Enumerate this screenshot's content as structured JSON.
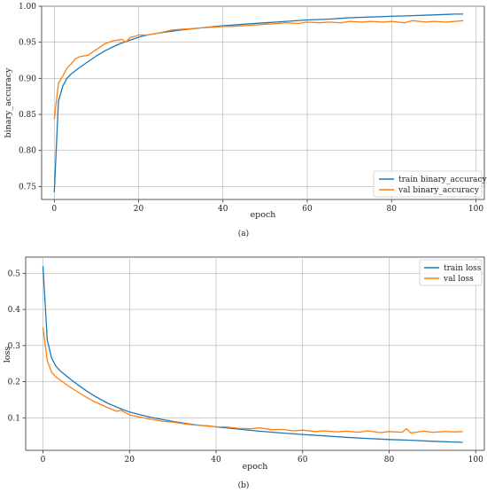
{
  "chart_data": [
    {
      "type": "line",
      "xlabel": "epoch",
      "ylabel": "binary_accuracy",
      "caption": "(a)",
      "xlim": [
        -3,
        102
      ],
      "ylim": [
        0.732,
        1.0
      ],
      "xticks": [
        0,
        20,
        40,
        60,
        80,
        100
      ],
      "yticks": [
        0.75,
        0.8,
        0.85,
        0.9,
        0.95,
        1.0
      ],
      "ytick_labels": [
        "0.75",
        "0.80",
        "0.85",
        "0.90",
        "0.95",
        "1.00"
      ],
      "grid": true,
      "legend_position": "lower-right",
      "series": [
        {
          "name": "train binary_accuracy",
          "color": "#1f77b4",
          "x": [
            0,
            1,
            2,
            3,
            4,
            6,
            8,
            10,
            12,
            14,
            16,
            18,
            20,
            22,
            25,
            30,
            35,
            40,
            45,
            50,
            55,
            60,
            65,
            70,
            75,
            80,
            85,
            90,
            95,
            97
          ],
          "y": [
            0.742,
            0.868,
            0.889,
            0.9,
            0.906,
            0.915,
            0.923,
            0.931,
            0.938,
            0.944,
            0.949,
            0.953,
            0.957,
            0.96,
            0.963,
            0.967,
            0.97,
            0.973,
            0.975,
            0.977,
            0.979,
            0.981,
            0.982,
            0.984,
            0.985,
            0.986,
            0.987,
            0.988,
            0.989,
            0.989
          ]
        },
        {
          "name": "val binary_accuracy",
          "color": "#ff7f0e",
          "x": [
            0,
            1,
            2,
            3,
            4,
            5,
            6,
            8,
            10,
            12,
            14,
            16,
            17,
            18,
            19,
            20,
            22,
            25,
            28,
            30,
            33,
            35,
            38,
            40,
            42,
            45,
            48,
            50,
            53,
            55,
            58,
            60,
            63,
            65,
            68,
            70,
            73,
            75,
            78,
            80,
            83,
            85,
            88,
            90,
            93,
            95,
            97
          ],
          "y": [
            0.843,
            0.893,
            0.903,
            0.914,
            0.92,
            0.927,
            0.93,
            0.932,
            0.94,
            0.948,
            0.952,
            0.954,
            0.95,
            0.957,
            0.958,
            0.96,
            0.96,
            0.963,
            0.967,
            0.968,
            0.969,
            0.97,
            0.971,
            0.972,
            0.972,
            0.973,
            0.974,
            0.975,
            0.976,
            0.977,
            0.976,
            0.978,
            0.977,
            0.978,
            0.977,
            0.979,
            0.978,
            0.979,
            0.978,
            0.979,
            0.977,
            0.98,
            0.978,
            0.979,
            0.978,
            0.979,
            0.98
          ]
        }
      ]
    },
    {
      "type": "line",
      "xlabel": "epoch",
      "ylabel": "loss",
      "caption": "(b)",
      "xlim": [
        -4,
        102
      ],
      "ylim": [
        0.01,
        0.545
      ],
      "xticks": [
        0,
        20,
        40,
        60,
        80,
        100
      ],
      "yticks": [
        0.1,
        0.2,
        0.3,
        0.4,
        0.5
      ],
      "ytick_labels": [
        "0.1",
        "0.2",
        "0.3",
        "0.4",
        "0.5"
      ],
      "grid": true,
      "legend_position": "upper-right",
      "series": [
        {
          "name": "train loss",
          "color": "#1f77b4",
          "x": [
            0,
            1,
            2,
            3,
            4,
            6,
            8,
            10,
            12,
            15,
            18,
            20,
            22,
            25,
            30,
            35,
            40,
            45,
            50,
            55,
            60,
            65,
            70,
            75,
            80,
            85,
            90,
            95,
            97
          ],
          "y": [
            0.52,
            0.315,
            0.265,
            0.243,
            0.23,
            0.21,
            0.192,
            0.175,
            0.16,
            0.14,
            0.125,
            0.116,
            0.11,
            0.101,
            0.09,
            0.081,
            0.075,
            0.069,
            0.063,
            0.058,
            0.054,
            0.05,
            0.046,
            0.043,
            0.04,
            0.038,
            0.035,
            0.033,
            0.032
          ]
        },
        {
          "name": "val loss",
          "color": "#ff7f0e",
          "x": [
            0,
            1,
            2,
            3,
            4,
            6,
            8,
            10,
            12,
            15,
            17,
            18,
            20,
            22,
            25,
            28,
            30,
            33,
            35,
            38,
            40,
            42,
            45,
            48,
            50,
            53,
            55,
            58,
            60,
            63,
            65,
            68,
            70,
            73,
            75,
            78,
            80,
            83,
            84,
            85,
            88,
            90,
            93,
            95,
            97
          ],
          "y": [
            0.35,
            0.258,
            0.226,
            0.213,
            0.204,
            0.187,
            0.172,
            0.157,
            0.144,
            0.128,
            0.118,
            0.121,
            0.108,
            0.103,
            0.096,
            0.09,
            0.088,
            0.083,
            0.08,
            0.078,
            0.075,
            0.075,
            0.071,
            0.07,
            0.072,
            0.067,
            0.068,
            0.064,
            0.066,
            0.062,
            0.064,
            0.061,
            0.063,
            0.06,
            0.064,
            0.059,
            0.062,
            0.06,
            0.07,
            0.058,
            0.063,
            0.06,
            0.062,
            0.061,
            0.062
          ]
        }
      ]
    }
  ]
}
